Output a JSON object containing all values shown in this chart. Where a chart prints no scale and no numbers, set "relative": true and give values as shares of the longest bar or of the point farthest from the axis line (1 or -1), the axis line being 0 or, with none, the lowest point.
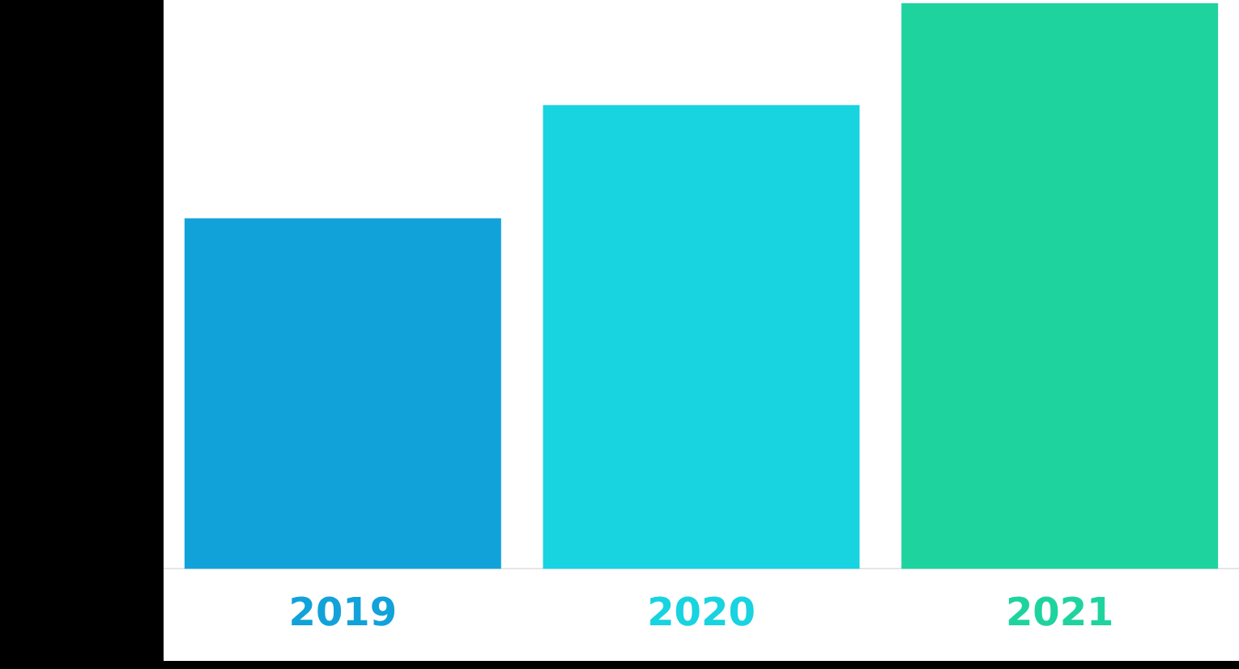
{
  "chart_data": {
    "type": "bar",
    "relative": true,
    "categories": [
      "2019",
      "2020",
      "2021"
    ],
    "values": [
      0.62,
      0.82,
      1
    ],
    "colors": [
      "#12a2da",
      "#18d3e0",
      "#1fd39f"
    ],
    "grid": false,
    "legend": false
  }
}
